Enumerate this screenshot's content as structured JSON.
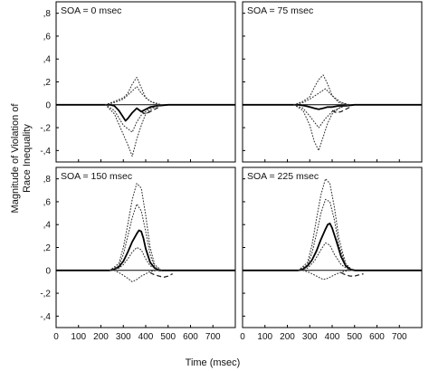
{
  "xlabel": "Time (msec)",
  "ylabel_line1": "Magnitude of Violation of",
  "ylabel_line2": "Race Inequality",
  "chart_data": [
    {
      "type": "line",
      "title": "SOA = 0 msec",
      "xlim": [
        0,
        800
      ],
      "ylim": [
        -0.5,
        0.9
      ],
      "yticks": [
        -0.4,
        -0.2,
        0,
        0.2,
        0.4,
        0.6,
        0.8
      ],
      "ytick_labels": [
        "-,4",
        "-,2",
        "0",
        ",2",
        ",4",
        ",6",
        ",8"
      ],
      "xticks": [
        0,
        100,
        200,
        300,
        400,
        500,
        600,
        700
      ],
      "xtick_labels": [
        "0",
        "100",
        "200",
        "300",
        "400",
        "500",
        "600",
        "700"
      ],
      "series": [
        {
          "style": "solid",
          "x": [
            0,
            200,
            240,
            260,
            280,
            300,
            310,
            320,
            340,
            360,
            380,
            400,
            420,
            450,
            500,
            600,
            800
          ],
          "y": [
            0,
            0,
            0,
            -0.01,
            -0.05,
            -0.11,
            -0.14,
            -0.12,
            -0.07,
            -0.03,
            -0.06,
            -0.04,
            -0.02,
            -0.01,
            0,
            0,
            0
          ]
        },
        {
          "style": "dotted",
          "x": [
            220,
            260,
            300,
            320,
            340,
            360,
            380,
            400,
            430,
            470
          ],
          "y": [
            0,
            -0.08,
            -0.26,
            -0.35,
            -0.45,
            -0.3,
            -0.18,
            -0.08,
            -0.03,
            0
          ]
        },
        {
          "style": "dotted",
          "x": [
            220,
            260,
            300,
            320,
            340,
            360,
            380,
            400,
            430,
            470
          ],
          "y": [
            0,
            0.03,
            0.06,
            0.1,
            0.18,
            0.24,
            0.15,
            0.06,
            0.02,
            0
          ]
        },
        {
          "style": "dotted",
          "x": [
            220,
            260,
            300,
            340,
            360,
            380,
            420,
            470
          ],
          "y": [
            0,
            -0.05,
            -0.18,
            -0.24,
            -0.15,
            -0.09,
            -0.03,
            0
          ]
        },
        {
          "style": "dotted",
          "x": [
            220,
            260,
            300,
            340,
            360,
            380,
            420,
            470
          ],
          "y": [
            0,
            0.02,
            0.05,
            0.12,
            0.16,
            0.1,
            0.03,
            0
          ]
        },
        {
          "style": "dashed",
          "x": [
            380,
            400,
            420,
            440,
            460
          ],
          "y": [
            -0.06,
            -0.08,
            -0.06,
            -0.04,
            -0.02
          ]
        }
      ]
    },
    {
      "type": "line",
      "title": "SOA = 75 msec",
      "xlim": [
        0,
        800
      ],
      "ylim": [
        -0.5,
        0.9
      ],
      "yticks": [
        -0.4,
        -0.2,
        0,
        0.2,
        0.4,
        0.6,
        0.8
      ],
      "xticks": [
        0,
        100,
        200,
        300,
        400,
        500,
        600,
        700
      ],
      "series": [
        {
          "style": "solid",
          "x": [
            0,
            250,
            280,
            300,
            320,
            340,
            360,
            380,
            400,
            430,
            460,
            500,
            800
          ],
          "y": [
            0,
            0,
            -0.01,
            -0.02,
            -0.03,
            -0.04,
            -0.03,
            -0.02,
            -0.02,
            -0.01,
            -0.01,
            0,
            0
          ]
        },
        {
          "style": "dotted",
          "x": [
            230,
            270,
            300,
            320,
            340,
            360,
            380,
            400,
            430,
            470
          ],
          "y": [
            0,
            -0.05,
            -0.18,
            -0.32,
            -0.4,
            -0.28,
            -0.16,
            -0.08,
            -0.03,
            0
          ]
        },
        {
          "style": "dotted",
          "x": [
            230,
            270,
            300,
            320,
            340,
            360,
            380,
            400,
            430,
            470
          ],
          "y": [
            0,
            0.03,
            0.07,
            0.15,
            0.22,
            0.26,
            0.18,
            0.08,
            0.02,
            0
          ]
        },
        {
          "style": "dotted",
          "x": [
            230,
            270,
            300,
            340,
            370,
            400,
            440,
            480
          ],
          "y": [
            0,
            -0.03,
            -0.1,
            -0.2,
            -0.12,
            -0.06,
            -0.02,
            0
          ]
        },
        {
          "style": "dotted",
          "x": [
            230,
            270,
            300,
            340,
            370,
            400,
            440,
            480
          ],
          "y": [
            0,
            0.02,
            0.05,
            0.1,
            0.14,
            0.08,
            0.02,
            0
          ]
        },
        {
          "style": "dashed",
          "x": [
            400,
            420,
            440,
            460,
            480
          ],
          "y": [
            -0.05,
            -0.07,
            -0.06,
            -0.04,
            -0.02
          ]
        }
      ]
    },
    {
      "type": "line",
      "title": "SOA = 150 msec",
      "xlim": [
        0,
        800
      ],
      "ylim": [
        -0.5,
        0.9
      ],
      "yticks": [
        -0.4,
        -0.2,
        0,
        0.2,
        0.4,
        0.6,
        0.8
      ],
      "xticks": [
        0,
        100,
        200,
        300,
        400,
        500,
        600,
        700
      ],
      "series": [
        {
          "style": "solid",
          "x": [
            0,
            240,
            260,
            280,
            300,
            320,
            340,
            360,
            370,
            380,
            390,
            400,
            420,
            440,
            460,
            500,
            800
          ],
          "y": [
            0,
            0,
            0.01,
            0.03,
            0.08,
            0.16,
            0.25,
            0.32,
            0.35,
            0.34,
            0.28,
            0.19,
            0.07,
            0.02,
            0,
            0,
            0
          ]
        },
        {
          "style": "dotted",
          "x": [
            240,
            280,
            300,
            320,
            340,
            360,
            380,
            400,
            420,
            440,
            470
          ],
          "y": [
            0,
            0.06,
            0.2,
            0.4,
            0.62,
            0.76,
            0.72,
            0.48,
            0.2,
            0.05,
            0
          ]
        },
        {
          "style": "dotted",
          "x": [
            240,
            280,
            300,
            320,
            340,
            360,
            380,
            400,
            420,
            440,
            470
          ],
          "y": [
            0,
            0.04,
            0.14,
            0.3,
            0.46,
            0.58,
            0.52,
            0.34,
            0.14,
            0.03,
            0
          ]
        },
        {
          "style": "dotted",
          "x": [
            240,
            280,
            300,
            320,
            340,
            360,
            380,
            400,
            420,
            460
          ],
          "y": [
            0,
            0.02,
            0.05,
            0.1,
            0.16,
            0.2,
            0.18,
            0.1,
            0.04,
            0
          ]
        },
        {
          "style": "dotted",
          "x": [
            260,
            290,
            320,
            340,
            360,
            380,
            400,
            420,
            450
          ],
          "y": [
            0,
            -0.03,
            -0.07,
            -0.1,
            -0.08,
            -0.05,
            -0.03,
            -0.01,
            0
          ]
        },
        {
          "style": "dashed",
          "x": [
            420,
            440,
            460,
            480,
            500,
            520
          ],
          "y": [
            -0.02,
            -0.04,
            -0.05,
            -0.06,
            -0.05,
            -0.03
          ]
        }
      ]
    },
    {
      "type": "line",
      "title": "SOA = 225 msec",
      "xlim": [
        0,
        800
      ],
      "ylim": [
        -0.5,
        0.9
      ],
      "yticks": [
        -0.4,
        -0.2,
        0,
        0.2,
        0.4,
        0.6,
        0.8
      ],
      "xticks": [
        0,
        100,
        200,
        300,
        400,
        500,
        600,
        700
      ],
      "series": [
        {
          "style": "solid",
          "x": [
            0,
            250,
            270,
            290,
            310,
            330,
            350,
            370,
            380,
            390,
            400,
            420,
            440,
            460,
            480,
            500,
            800
          ],
          "y": [
            0,
            0,
            0.01,
            0.04,
            0.09,
            0.17,
            0.27,
            0.36,
            0.4,
            0.41,
            0.37,
            0.25,
            0.12,
            0.04,
            0.01,
            0,
            0
          ]
        },
        {
          "style": "dotted",
          "x": [
            250,
            290,
            310,
            330,
            350,
            370,
            390,
            410,
            430,
            460,
            490
          ],
          "y": [
            0,
            0.07,
            0.22,
            0.45,
            0.66,
            0.8,
            0.76,
            0.55,
            0.28,
            0.06,
            0
          ]
        },
        {
          "style": "dotted",
          "x": [
            250,
            290,
            310,
            330,
            350,
            370,
            390,
            410,
            430,
            460,
            490
          ],
          "y": [
            0,
            0.05,
            0.15,
            0.32,
            0.5,
            0.62,
            0.6,
            0.44,
            0.22,
            0.05,
            0
          ]
        },
        {
          "style": "dotted",
          "x": [
            250,
            290,
            320,
            350,
            370,
            390,
            410,
            440,
            480
          ],
          "y": [
            0,
            0.02,
            0.08,
            0.18,
            0.24,
            0.22,
            0.14,
            0.05,
            0
          ]
        },
        {
          "style": "dotted",
          "x": [
            270,
            300,
            330,
            360,
            380,
            400,
            420,
            450,
            480
          ],
          "y": [
            0,
            -0.02,
            -0.05,
            -0.08,
            -0.07,
            -0.05,
            -0.03,
            -0.01,
            0
          ]
        },
        {
          "style": "dashed",
          "x": [
            440,
            460,
            480,
            500,
            520,
            540
          ],
          "y": [
            -0.02,
            -0.04,
            -0.05,
            -0.05,
            -0.04,
            -0.03
          ]
        }
      ]
    }
  ]
}
